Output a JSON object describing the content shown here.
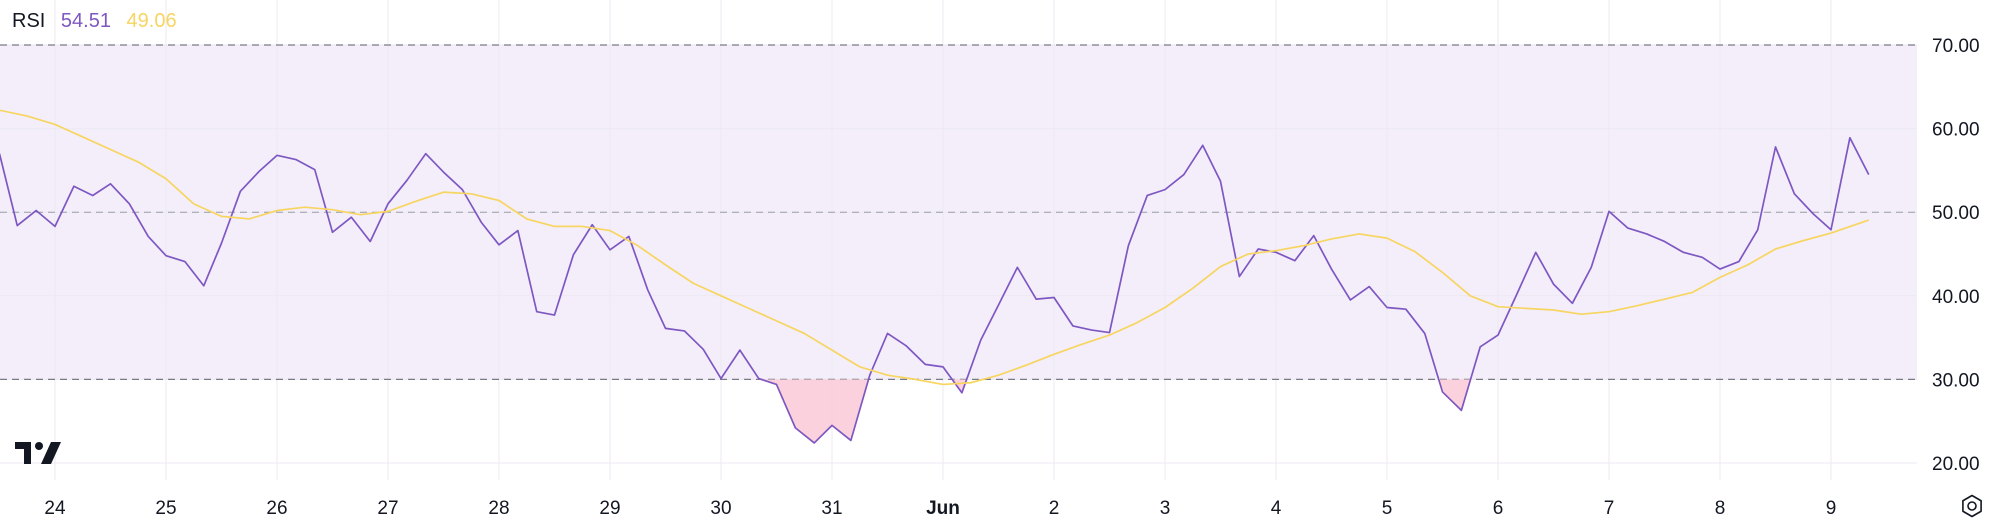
{
  "legend": {
    "name": "RSI",
    "rsi_value": "54.51",
    "ma_value": "49.06"
  },
  "colors": {
    "rsi": "#7e57c2",
    "ma": "#f7d560",
    "band_fill": "#f3eefa",
    "oversold_fill": "#f9c9d6",
    "band_line": "#787b86",
    "grid": "#ede9f2"
  },
  "icons": {
    "logo": "tradingview-logo-icon",
    "settings": "settings-gear-icon"
  },
  "chart_data": {
    "type": "line",
    "ylim": [
      17,
      72
    ],
    "xlim": [
      -0.5,
      17.2
    ],
    "yticks": [
      {
        "value": 70,
        "label": "70.00"
      },
      {
        "value": 60,
        "label": "60.00"
      },
      {
        "value": 50,
        "label": "50.00"
      },
      {
        "value": 40,
        "label": "40.00"
      },
      {
        "value": 30,
        "label": "30.00"
      },
      {
        "value": 20,
        "label": "20.00"
      }
    ],
    "xticks": [
      {
        "value": 0,
        "label": "24"
      },
      {
        "value": 1,
        "label": "25"
      },
      {
        "value": 2,
        "label": "26"
      },
      {
        "value": 3,
        "label": "27"
      },
      {
        "value": 4,
        "label": "28"
      },
      {
        "value": 5,
        "label": "29"
      },
      {
        "value": 6,
        "label": "30"
      },
      {
        "value": 7,
        "label": "31"
      },
      {
        "value": 8,
        "label": "Jun",
        "bold": true
      },
      {
        "value": 9,
        "label": "2"
      },
      {
        "value": 10,
        "label": "3"
      },
      {
        "value": 11,
        "label": "4"
      },
      {
        "value": 12,
        "label": "5"
      },
      {
        "value": 13,
        "label": "6"
      },
      {
        "value": 14,
        "label": "7"
      },
      {
        "value": 15,
        "label": "8"
      },
      {
        "value": 16,
        "label": "9"
      }
    ],
    "bands": {
      "upper": 70,
      "middle": 50,
      "lower": 30
    },
    "grid": true,
    "series": [
      {
        "key": "rsi",
        "x": [
          -0.5,
          -0.34,
          -0.17,
          0,
          0.17,
          0.34,
          0.5,
          0.67,
          0.84,
          1,
          1.17,
          1.34,
          1.5,
          1.67,
          1.84,
          2,
          2.17,
          2.34,
          2.5,
          2.67,
          2.84,
          3,
          3.17,
          3.34,
          3.5,
          3.67,
          3.84,
          4,
          4.17,
          4.34,
          4.5,
          4.67,
          4.84,
          5,
          5.17,
          5.34,
          5.5,
          5.67,
          5.84,
          6,
          6.17,
          6.34,
          6.5,
          6.67,
          6.84,
          7,
          7.17,
          7.34,
          7.5,
          7.67,
          7.84,
          8,
          8.17,
          8.34,
          8.5,
          8.67,
          8.84,
          9,
          9.17,
          9.34,
          9.5,
          9.67,
          9.84,
          10,
          10.17,
          10.34,
          10.5,
          10.67,
          10.84,
          11,
          11.17,
          11.34,
          11.5,
          11.67,
          11.84,
          12,
          12.17,
          12.34,
          12.5,
          12.67,
          12.84,
          13,
          13.17,
          13.34,
          13.5,
          13.67,
          13.84,
          14,
          14.17,
          14.34,
          14.5,
          14.67,
          14.84,
          15,
          15.17,
          15.34,
          15.5,
          15.67,
          15.84,
          16,
          16.17,
          16.34
        ],
        "values": [
          57.0,
          48.4,
          50.2,
          48.3,
          53.1,
          52.0,
          53.4,
          51.0,
          47.1,
          44.8,
          44.1,
          41.2,
          46.3,
          52.5,
          54.9,
          56.8,
          56.3,
          55.1,
          47.6,
          49.4,
          46.5,
          51.0,
          53.8,
          57.0,
          54.8,
          52.7,
          48.8,
          46.1,
          47.8,
          38.1,
          37.7,
          44.9,
          48.5,
          45.5,
          47.1,
          40.7,
          36.1,
          35.8,
          33.6,
          30.1,
          33.5,
          30.1,
          29.4,
          24.2,
          22.4,
          24.5,
          22.7,
          30.5,
          35.5,
          34.0,
          31.8,
          31.5,
          28.4,
          34.7,
          38.9,
          43.4,
          39.6,
          39.8,
          36.4,
          35.9,
          35.6,
          46.0,
          52.0,
          52.7,
          54.5,
          58.0,
          53.7,
          42.3,
          45.6,
          45.2,
          44.2,
          47.2,
          43.2,
          39.5,
          41.1,
          38.6,
          38.4,
          35.5,
          28.5,
          26.3,
          33.9,
          35.3,
          40.2,
          45.2,
          41.4,
          39.1,
          43.4,
          50.1,
          48.1,
          47.4,
          46.5,
          45.2,
          44.6,
          43.2,
          44.1,
          47.9,
          57.8,
          52.2,
          49.8,
          47.9,
          58.9,
          54.5
        ]
      },
      {
        "key": "ma",
        "x": [
          -0.5,
          -0.25,
          0,
          0.25,
          0.5,
          0.75,
          1,
          1.25,
          1.5,
          1.75,
          2,
          2.25,
          2.5,
          2.75,
          3,
          3.25,
          3.5,
          3.75,
          4,
          4.25,
          4.5,
          4.75,
          5,
          5.25,
          5.5,
          5.75,
          6,
          6.25,
          6.5,
          6.75,
          7,
          7.25,
          7.5,
          7.75,
          8,
          8.25,
          8.5,
          8.75,
          9,
          9.25,
          9.5,
          9.75,
          10,
          10.25,
          10.5,
          10.75,
          11,
          11.25,
          11.5,
          11.75,
          12,
          12.25,
          12.5,
          12.75,
          13,
          13.25,
          13.5,
          13.75,
          14,
          14.25,
          14.5,
          14.75,
          15,
          15.25,
          15.5,
          15.75,
          16,
          16.34
        ],
        "values": [
          62.2,
          61.5,
          60.5,
          59.0,
          57.5,
          56.0,
          54.0,
          51.0,
          49.5,
          49.2,
          50.2,
          50.6,
          50.3,
          49.7,
          50.1,
          51.3,
          52.4,
          52.2,
          51.4,
          49.2,
          48.3,
          48.3,
          47.8,
          46.0,
          43.7,
          41.5,
          40.0,
          38.5,
          37.0,
          35.5,
          33.5,
          31.5,
          30.5,
          30.0,
          29.4,
          29.6,
          30.5,
          31.7,
          33.0,
          34.2,
          35.3,
          36.8,
          38.6,
          40.9,
          43.5,
          45.0,
          45.4,
          46.0,
          46.8,
          47.4,
          46.9,
          45.3,
          42.8,
          40.0,
          38.7,
          38.5,
          38.3,
          37.8,
          38.1,
          38.8,
          39.6,
          40.4,
          42.2,
          43.7,
          45.6,
          46.6,
          47.5,
          49.06
        ]
      }
    ]
  }
}
